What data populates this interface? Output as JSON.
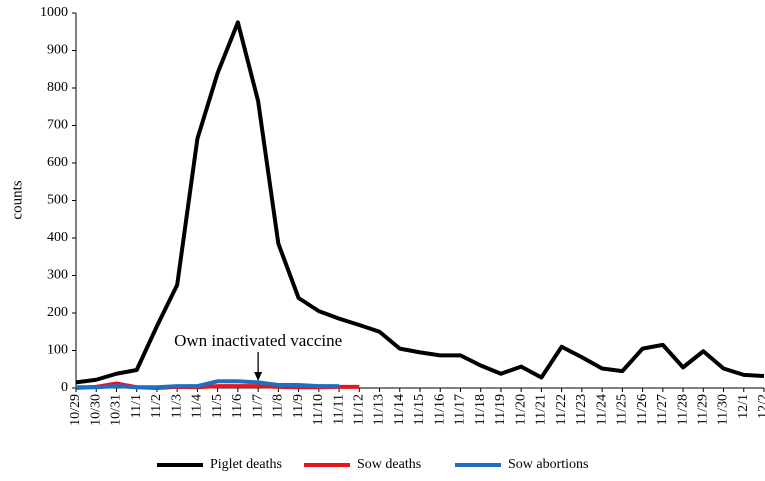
{
  "chart_data": {
    "type": "line",
    "y_label": "counts",
    "annotation": "Own inactivated vaccine",
    "categories": [
      "10/29",
      "10/30",
      "10/31",
      "11/1",
      "11/2",
      "11/3",
      "11/4",
      "11/5",
      "11/6",
      "11/7",
      "11/8",
      "11/9",
      "11/10",
      "11/11",
      "11/12",
      "11/13",
      "11/14",
      "11/15",
      "11/16",
      "11/17",
      "11/18",
      "11/19",
      "11/20",
      "11/21",
      "11/22",
      "11/23",
      "11/24",
      "11/25",
      "11/26",
      "11/27",
      "11/28",
      "11/29",
      "11/30",
      "12/1",
      "12/2"
    ],
    "series": [
      {
        "name": "Piglet deaths",
        "color": "#000000",
        "values": [
          15,
          22,
          38,
          48,
          165,
          275,
          665,
          840,
          975,
          765,
          385,
          240,
          205,
          185,
          168,
          150,
          105,
          95,
          87,
          87,
          60,
          38,
          57,
          28,
          110,
          82,
          52,
          45,
          105,
          115,
          55,
          98,
          52,
          35,
          32
        ]
      },
      {
        "name": "Sow deaths",
        "color": "#e8141b",
        "values": [
          0,
          3,
          12,
          2,
          0,
          3,
          2,
          5,
          5,
          5,
          3,
          2,
          2,
          3,
          3,
          null,
          null,
          null,
          null,
          null,
          null,
          null,
          null,
          null,
          null,
          null,
          null,
          null,
          null,
          null,
          null,
          null,
          null,
          null,
          null
        ]
      },
      {
        "name": "Sow abortions",
        "color": "#1f6fc0",
        "values": [
          2,
          2,
          5,
          2,
          2,
          5,
          5,
          18,
          18,
          15,
          8,
          8,
          5,
          5,
          null,
          null,
          null,
          null,
          null,
          null,
          null,
          null,
          null,
          null,
          null,
          null,
          null,
          null,
          null,
          null,
          null,
          null,
          null,
          null,
          null
        ]
      }
    ],
    "ylim": [
      0,
      1000
    ],
    "yticks": [
      0,
      100,
      200,
      300,
      400,
      500,
      600,
      700,
      800,
      900,
      1000
    ],
    "grid": false,
    "legend": "bottom"
  }
}
